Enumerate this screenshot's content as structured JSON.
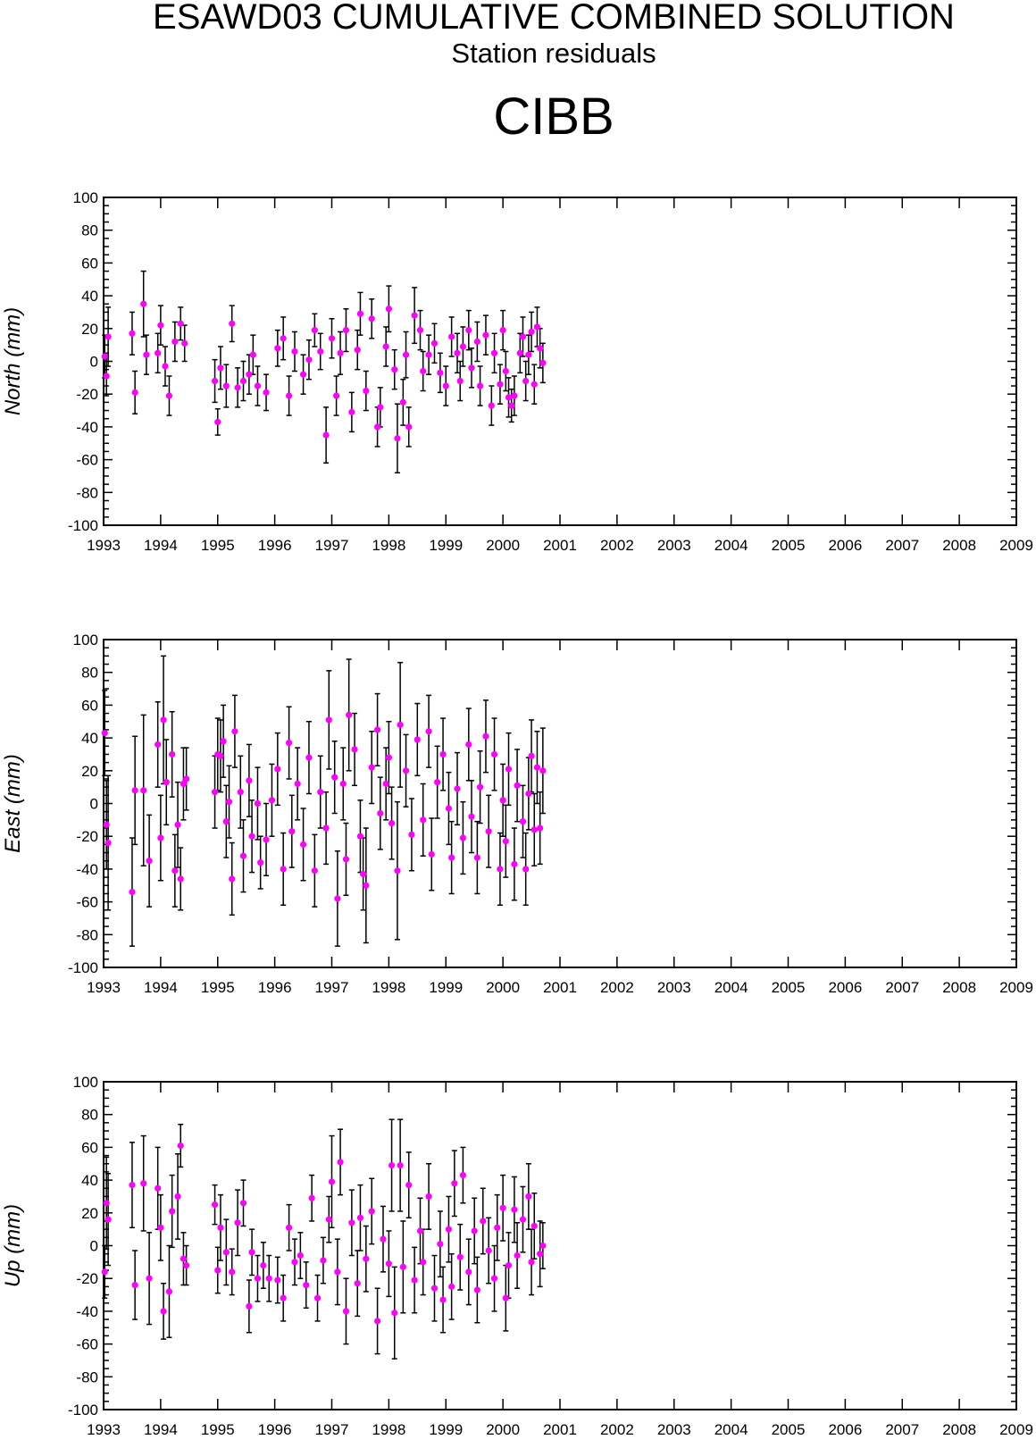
{
  "header": {
    "title": "ESAWD03 CUMULATIVE COMBINED SOLUTION",
    "subtitle": "Station residuals",
    "station": "CIBB"
  },
  "colors": {
    "marker": "#ff00ff",
    "error_bar": "#000000",
    "axis": "#000000"
  },
  "chart_data": [
    {
      "type": "scatter",
      "ylabel": "North (mm)",
      "xlim": [
        1993,
        2009
      ],
      "ylim": [
        -100,
        100
      ],
      "x_ticks": [
        1993,
        1994,
        1995,
        1996,
        1997,
        1998,
        1999,
        2000,
        2001,
        2002,
        2003,
        2004,
        2005,
        2006,
        2007,
        2008,
        2009
      ],
      "y_ticks": [
        -100,
        -80,
        -60,
        -40,
        -20,
        0,
        20,
        40,
        60,
        80,
        100
      ],
      "error_bars": true,
      "points": [
        [
          1993.02,
          3,
          13
        ],
        [
          1993.05,
          -9,
          12
        ],
        [
          1993.08,
          15,
          18
        ],
        [
          1993.5,
          17,
          13
        ],
        [
          1993.55,
          -19,
          13
        ],
        [
          1993.7,
          35,
          20
        ],
        [
          1993.75,
          4,
          12
        ],
        [
          1993.95,
          5,
          12
        ],
        [
          1994.0,
          22,
          12
        ],
        [
          1994.08,
          -3,
          12
        ],
        [
          1994.15,
          -21,
          12
        ],
        [
          1994.25,
          12,
          12
        ],
        [
          1994.35,
          23,
          10
        ],
        [
          1994.42,
          11,
          11
        ],
        [
          1994.95,
          -12,
          13
        ],
        [
          1995.0,
          -37,
          8
        ],
        [
          1995.05,
          -4,
          13
        ],
        [
          1995.15,
          -15,
          13
        ],
        [
          1995.25,
          23,
          11
        ],
        [
          1995.35,
          -16,
          12
        ],
        [
          1995.45,
          -12,
          12
        ],
        [
          1995.55,
          -8,
          12
        ],
        [
          1995.62,
          4,
          12
        ],
        [
          1995.7,
          -15,
          12
        ],
        [
          1995.85,
          -19,
          11
        ],
        [
          1996.05,
          8,
          11
        ],
        [
          1996.15,
          14,
          13
        ],
        [
          1996.25,
          -21,
          12
        ],
        [
          1996.35,
          6,
          12
        ],
        [
          1996.5,
          -8,
          12
        ],
        [
          1996.6,
          1,
          12
        ],
        [
          1996.7,
          19,
          10
        ],
        [
          1996.8,
          6,
          11
        ],
        [
          1996.9,
          -45,
          17
        ],
        [
          1997.0,
          14,
          12
        ],
        [
          1997.08,
          -21,
          12
        ],
        [
          1997.15,
          5,
          13
        ],
        [
          1997.25,
          19,
          13
        ],
        [
          1997.35,
          -31,
          12
        ],
        [
          1997.45,
          7,
          12
        ],
        [
          1997.5,
          29,
          13
        ],
        [
          1997.6,
          -18,
          12
        ],
        [
          1997.7,
          26,
          12
        ],
        [
          1997.8,
          -40,
          12
        ],
        [
          1997.85,
          -28,
          12
        ],
        [
          1997.95,
          9,
          12
        ],
        [
          1998.0,
          32,
          14
        ],
        [
          1998.1,
          -5,
          12
        ],
        [
          1998.15,
          -47,
          21
        ],
        [
          1998.25,
          -25,
          14
        ],
        [
          1998.3,
          4,
          14
        ],
        [
          1998.35,
          -40,
          12
        ],
        [
          1998.45,
          28,
          17
        ],
        [
          1998.55,
          19,
          12
        ],
        [
          1998.6,
          -6,
          12
        ],
        [
          1998.7,
          4,
          12
        ],
        [
          1998.8,
          11,
          12
        ],
        [
          1998.9,
          -7,
          12
        ],
        [
          1999.0,
          -15,
          12
        ],
        [
          1999.1,
          15,
          12
        ],
        [
          1999.2,
          5,
          12
        ],
        [
          1999.25,
          -12,
          12
        ],
        [
          1999.3,
          9,
          12
        ],
        [
          1999.4,
          19,
          12
        ],
        [
          1999.45,
          -4,
          12
        ],
        [
          1999.55,
          12,
          12
        ],
        [
          1999.6,
          -15,
          12
        ],
        [
          1999.7,
          16,
          12
        ],
        [
          1999.8,
          -27,
          12
        ],
        [
          1999.85,
          5,
          12
        ],
        [
          1999.95,
          -14,
          12
        ],
        [
          2000.0,
          19,
          12
        ],
        [
          2000.05,
          -6,
          12
        ],
        [
          2000.1,
          -22,
          12
        ],
        [
          2000.15,
          -27,
          10
        ],
        [
          2000.2,
          -21,
          12
        ],
        [
          2000.3,
          5,
          12
        ],
        [
          2000.35,
          15,
          12
        ],
        [
          2000.4,
          -12,
          12
        ],
        [
          2000.45,
          4,
          12
        ],
        [
          2000.5,
          18,
          12
        ],
        [
          2000.55,
          -14,
          12
        ],
        [
          2000.6,
          21,
          12
        ],
        [
          2000.65,
          8,
          12
        ],
        [
          2000.7,
          -1,
          12
        ]
      ]
    },
    {
      "type": "scatter",
      "ylabel": "East (mm)",
      "xlim": [
        1993,
        2009
      ],
      "ylim": [
        -100,
        100
      ],
      "x_ticks": [
        1993,
        1994,
        1995,
        1996,
        1997,
        1998,
        1999,
        2000,
        2001,
        2002,
        2003,
        2004,
        2005,
        2006,
        2007,
        2008,
        2009
      ],
      "y_ticks": [
        -100,
        -80,
        -60,
        -40,
        -20,
        0,
        20,
        40,
        60,
        80,
        100
      ],
      "error_bars": true,
      "points": [
        [
          1993.02,
          43,
          26
        ],
        [
          1993.05,
          -13,
          27
        ],
        [
          1993.08,
          -24,
          41
        ],
        [
          1993.5,
          -54,
          33
        ],
        [
          1993.55,
          8,
          33
        ],
        [
          1993.7,
          8,
          46
        ],
        [
          1993.8,
          -35,
          28
        ],
        [
          1993.95,
          36,
          26
        ],
        [
          1994.0,
          -21,
          26
        ],
        [
          1994.05,
          51,
          39
        ],
        [
          1994.1,
          13,
          26
        ],
        [
          1994.2,
          30,
          26
        ],
        [
          1994.25,
          -41,
          22
        ],
        [
          1994.3,
          -13,
          26
        ],
        [
          1994.35,
          -46,
          19
        ],
        [
          1994.4,
          12,
          22
        ],
        [
          1994.45,
          15,
          19
        ],
        [
          1994.95,
          7,
          22
        ],
        [
          1995.0,
          30,
          22
        ],
        [
          1995.05,
          29,
          22
        ],
        [
          1995.1,
          38,
          22
        ],
        [
          1995.15,
          -11,
          22
        ],
        [
          1995.2,
          1,
          22
        ],
        [
          1995.25,
          -46,
          22
        ],
        [
          1995.3,
          44,
          22
        ],
        [
          1995.4,
          7,
          22
        ],
        [
          1995.45,
          -32,
          22
        ],
        [
          1995.55,
          14,
          22
        ],
        [
          1995.6,
          -20,
          22
        ],
        [
          1995.7,
          0,
          22
        ],
        [
          1995.75,
          -36,
          16
        ],
        [
          1995.85,
          -22,
          22
        ],
        [
          1995.95,
          2,
          22
        ],
        [
          1996.05,
          21,
          22
        ],
        [
          1996.15,
          -40,
          22
        ],
        [
          1996.25,
          37,
          22
        ],
        [
          1996.3,
          -17,
          22
        ],
        [
          1996.4,
          12,
          22
        ],
        [
          1996.5,
          -25,
          22
        ],
        [
          1996.6,
          28,
          22
        ],
        [
          1996.7,
          -41,
          22
        ],
        [
          1996.8,
          7,
          22
        ],
        [
          1996.9,
          -15,
          22
        ],
        [
          1996.95,
          51,
          30
        ],
        [
          1997.05,
          16,
          22
        ],
        [
          1997.1,
          -58,
          29
        ],
        [
          1997.2,
          12,
          22
        ],
        [
          1997.25,
          -34,
          22
        ],
        [
          1997.3,
          54,
          34
        ],
        [
          1997.4,
          33,
          22
        ],
        [
          1997.5,
          -20,
          22
        ],
        [
          1997.55,
          -43,
          22
        ],
        [
          1997.6,
          -50,
          35
        ],
        [
          1997.7,
          22,
          22
        ],
        [
          1997.8,
          45,
          22
        ],
        [
          1997.85,
          -6,
          22
        ],
        [
          1997.95,
          12,
          22
        ],
        [
          1998.0,
          28,
          22
        ],
        [
          1998.05,
          -12,
          22
        ],
        [
          1998.15,
          -41,
          42
        ],
        [
          1998.2,
          48,
          38
        ],
        [
          1998.3,
          20,
          22
        ],
        [
          1998.4,
          -19,
          22
        ],
        [
          1998.5,
          39,
          22
        ],
        [
          1998.6,
          -10,
          22
        ],
        [
          1998.7,
          44,
          22
        ],
        [
          1998.75,
          -31,
          22
        ],
        [
          1998.85,
          13,
          22
        ],
        [
          1998.95,
          30,
          22
        ],
        [
          1999.05,
          -3,
          22
        ],
        [
          1999.1,
          -33,
          22
        ],
        [
          1999.2,
          9,
          22
        ],
        [
          1999.3,
          -21,
          22
        ],
        [
          1999.4,
          36,
          22
        ],
        [
          1999.45,
          -8,
          22
        ],
        [
          1999.55,
          -33,
          22
        ],
        [
          1999.6,
          10,
          22
        ],
        [
          1999.7,
          41,
          22
        ],
        [
          1999.75,
          -17,
          22
        ],
        [
          1999.85,
          30,
          22
        ],
        [
          1999.95,
          -40,
          22
        ],
        [
          2000.0,
          2,
          22
        ],
        [
          2000.05,
          -23,
          22
        ],
        [
          2000.1,
          21,
          22
        ],
        [
          2000.2,
          -37,
          22
        ],
        [
          2000.25,
          11,
          22
        ],
        [
          2000.35,
          -11,
          22
        ],
        [
          2000.4,
          -40,
          22
        ],
        [
          2000.45,
          6,
          22
        ],
        [
          2000.5,
          29,
          22
        ],
        [
          2000.55,
          -16,
          22
        ],
        [
          2000.6,
          22,
          22
        ],
        [
          2000.65,
          -15,
          22
        ],
        [
          2000.7,
          20,
          26
        ]
      ]
    },
    {
      "type": "scatter",
      "ylabel": "Up (mm)",
      "xlim": [
        1993,
        2009
      ],
      "ylim": [
        -100,
        100
      ],
      "x_ticks": [
        1993,
        1994,
        1995,
        1996,
        1997,
        1998,
        1999,
        2000,
        2001,
        2002,
        2003,
        2004,
        2005,
        2006,
        2007,
        2008,
        2009
      ],
      "y_ticks": [
        -100,
        -80,
        -60,
        -40,
        -20,
        0,
        20,
        40,
        60,
        80,
        100
      ],
      "error_bars": true,
      "points": [
        [
          1993.02,
          -16,
          16
        ],
        [
          1993.05,
          26,
          28
        ],
        [
          1993.08,
          16,
          28
        ],
        [
          1993.5,
          37,
          26
        ],
        [
          1993.55,
          -24,
          21
        ],
        [
          1993.7,
          38,
          29
        ],
        [
          1993.8,
          -20,
          28
        ],
        [
          1993.95,
          35,
          25
        ],
        [
          1994.0,
          11,
          20
        ],
        [
          1994.05,
          -40,
          17
        ],
        [
          1994.15,
          -28,
          28
        ],
        [
          1994.2,
          21,
          22
        ],
        [
          1994.3,
          30,
          26
        ],
        [
          1994.35,
          61,
          13
        ],
        [
          1994.4,
          -8,
          16
        ],
        [
          1994.45,
          -12,
          12
        ],
        [
          1994.95,
          25,
          12
        ],
        [
          1995.0,
          -15,
          14
        ],
        [
          1995.05,
          11,
          20
        ],
        [
          1995.15,
          -4,
          20
        ],
        [
          1995.25,
          -16,
          14
        ],
        [
          1995.35,
          14,
          20
        ],
        [
          1995.45,
          26,
          14
        ],
        [
          1995.55,
          -37,
          16
        ],
        [
          1995.6,
          -4,
          14
        ],
        [
          1995.7,
          -20,
          14
        ],
        [
          1995.8,
          -12,
          14
        ],
        [
          1995.9,
          -20,
          14
        ],
        [
          1996.05,
          -21,
          14
        ],
        [
          1996.15,
          -32,
          14
        ],
        [
          1996.25,
          11,
          14
        ],
        [
          1996.35,
          -10,
          14
        ],
        [
          1996.45,
          -6,
          14
        ],
        [
          1996.55,
          -24,
          14
        ],
        [
          1996.65,
          29,
          14
        ],
        [
          1996.75,
          -32,
          14
        ],
        [
          1996.85,
          -9,
          14
        ],
        [
          1996.95,
          16,
          14
        ],
        [
          1997.0,
          39,
          28
        ],
        [
          1997.1,
          -16,
          20
        ],
        [
          1997.15,
          51,
          20
        ],
        [
          1997.25,
          -40,
          20
        ],
        [
          1997.35,
          14,
          20
        ],
        [
          1997.45,
          -23,
          20
        ],
        [
          1997.5,
          17,
          20
        ],
        [
          1997.6,
          -8,
          20
        ],
        [
          1997.7,
          21,
          20
        ],
        [
          1997.8,
          -46,
          20
        ],
        [
          1997.9,
          4,
          20
        ],
        [
          1998.0,
          -11,
          20
        ],
        [
          1998.05,
          49,
          28
        ],
        [
          1998.1,
          -41,
          28
        ],
        [
          1998.2,
          49,
          28
        ],
        [
          1998.25,
          -13,
          28
        ],
        [
          1998.35,
          37,
          20
        ],
        [
          1998.45,
          -21,
          20
        ],
        [
          1998.55,
          9,
          20
        ],
        [
          1998.6,
          -10,
          20
        ],
        [
          1998.7,
          30,
          20
        ],
        [
          1998.8,
          -26,
          20
        ],
        [
          1998.9,
          1,
          20
        ],
        [
          1998.95,
          -33,
          20
        ],
        [
          1999.05,
          10,
          20
        ],
        [
          1999.1,
          -25,
          20
        ],
        [
          1999.15,
          38,
          20
        ],
        [
          1999.25,
          -7,
          20
        ],
        [
          1999.3,
          43,
          17
        ],
        [
          1999.4,
          -16,
          20
        ],
        [
          1999.5,
          9,
          20
        ],
        [
          1999.55,
          -27,
          20
        ],
        [
          1999.65,
          15,
          20
        ],
        [
          1999.75,
          -3,
          20
        ],
        [
          1999.85,
          -20,
          20
        ],
        [
          1999.9,
          11,
          20
        ],
        [
          2000.0,
          23,
          20
        ],
        [
          2000.05,
          -32,
          20
        ],
        [
          2000.1,
          -12,
          20
        ],
        [
          2000.2,
          22,
          20
        ],
        [
          2000.25,
          -6,
          20
        ],
        [
          2000.35,
          16,
          20
        ],
        [
          2000.45,
          30,
          20
        ],
        [
          2000.5,
          -10,
          20
        ],
        [
          2000.55,
          12,
          20
        ],
        [
          2000.65,
          -5,
          20
        ],
        [
          2000.7,
          0,
          14
        ]
      ]
    }
  ]
}
